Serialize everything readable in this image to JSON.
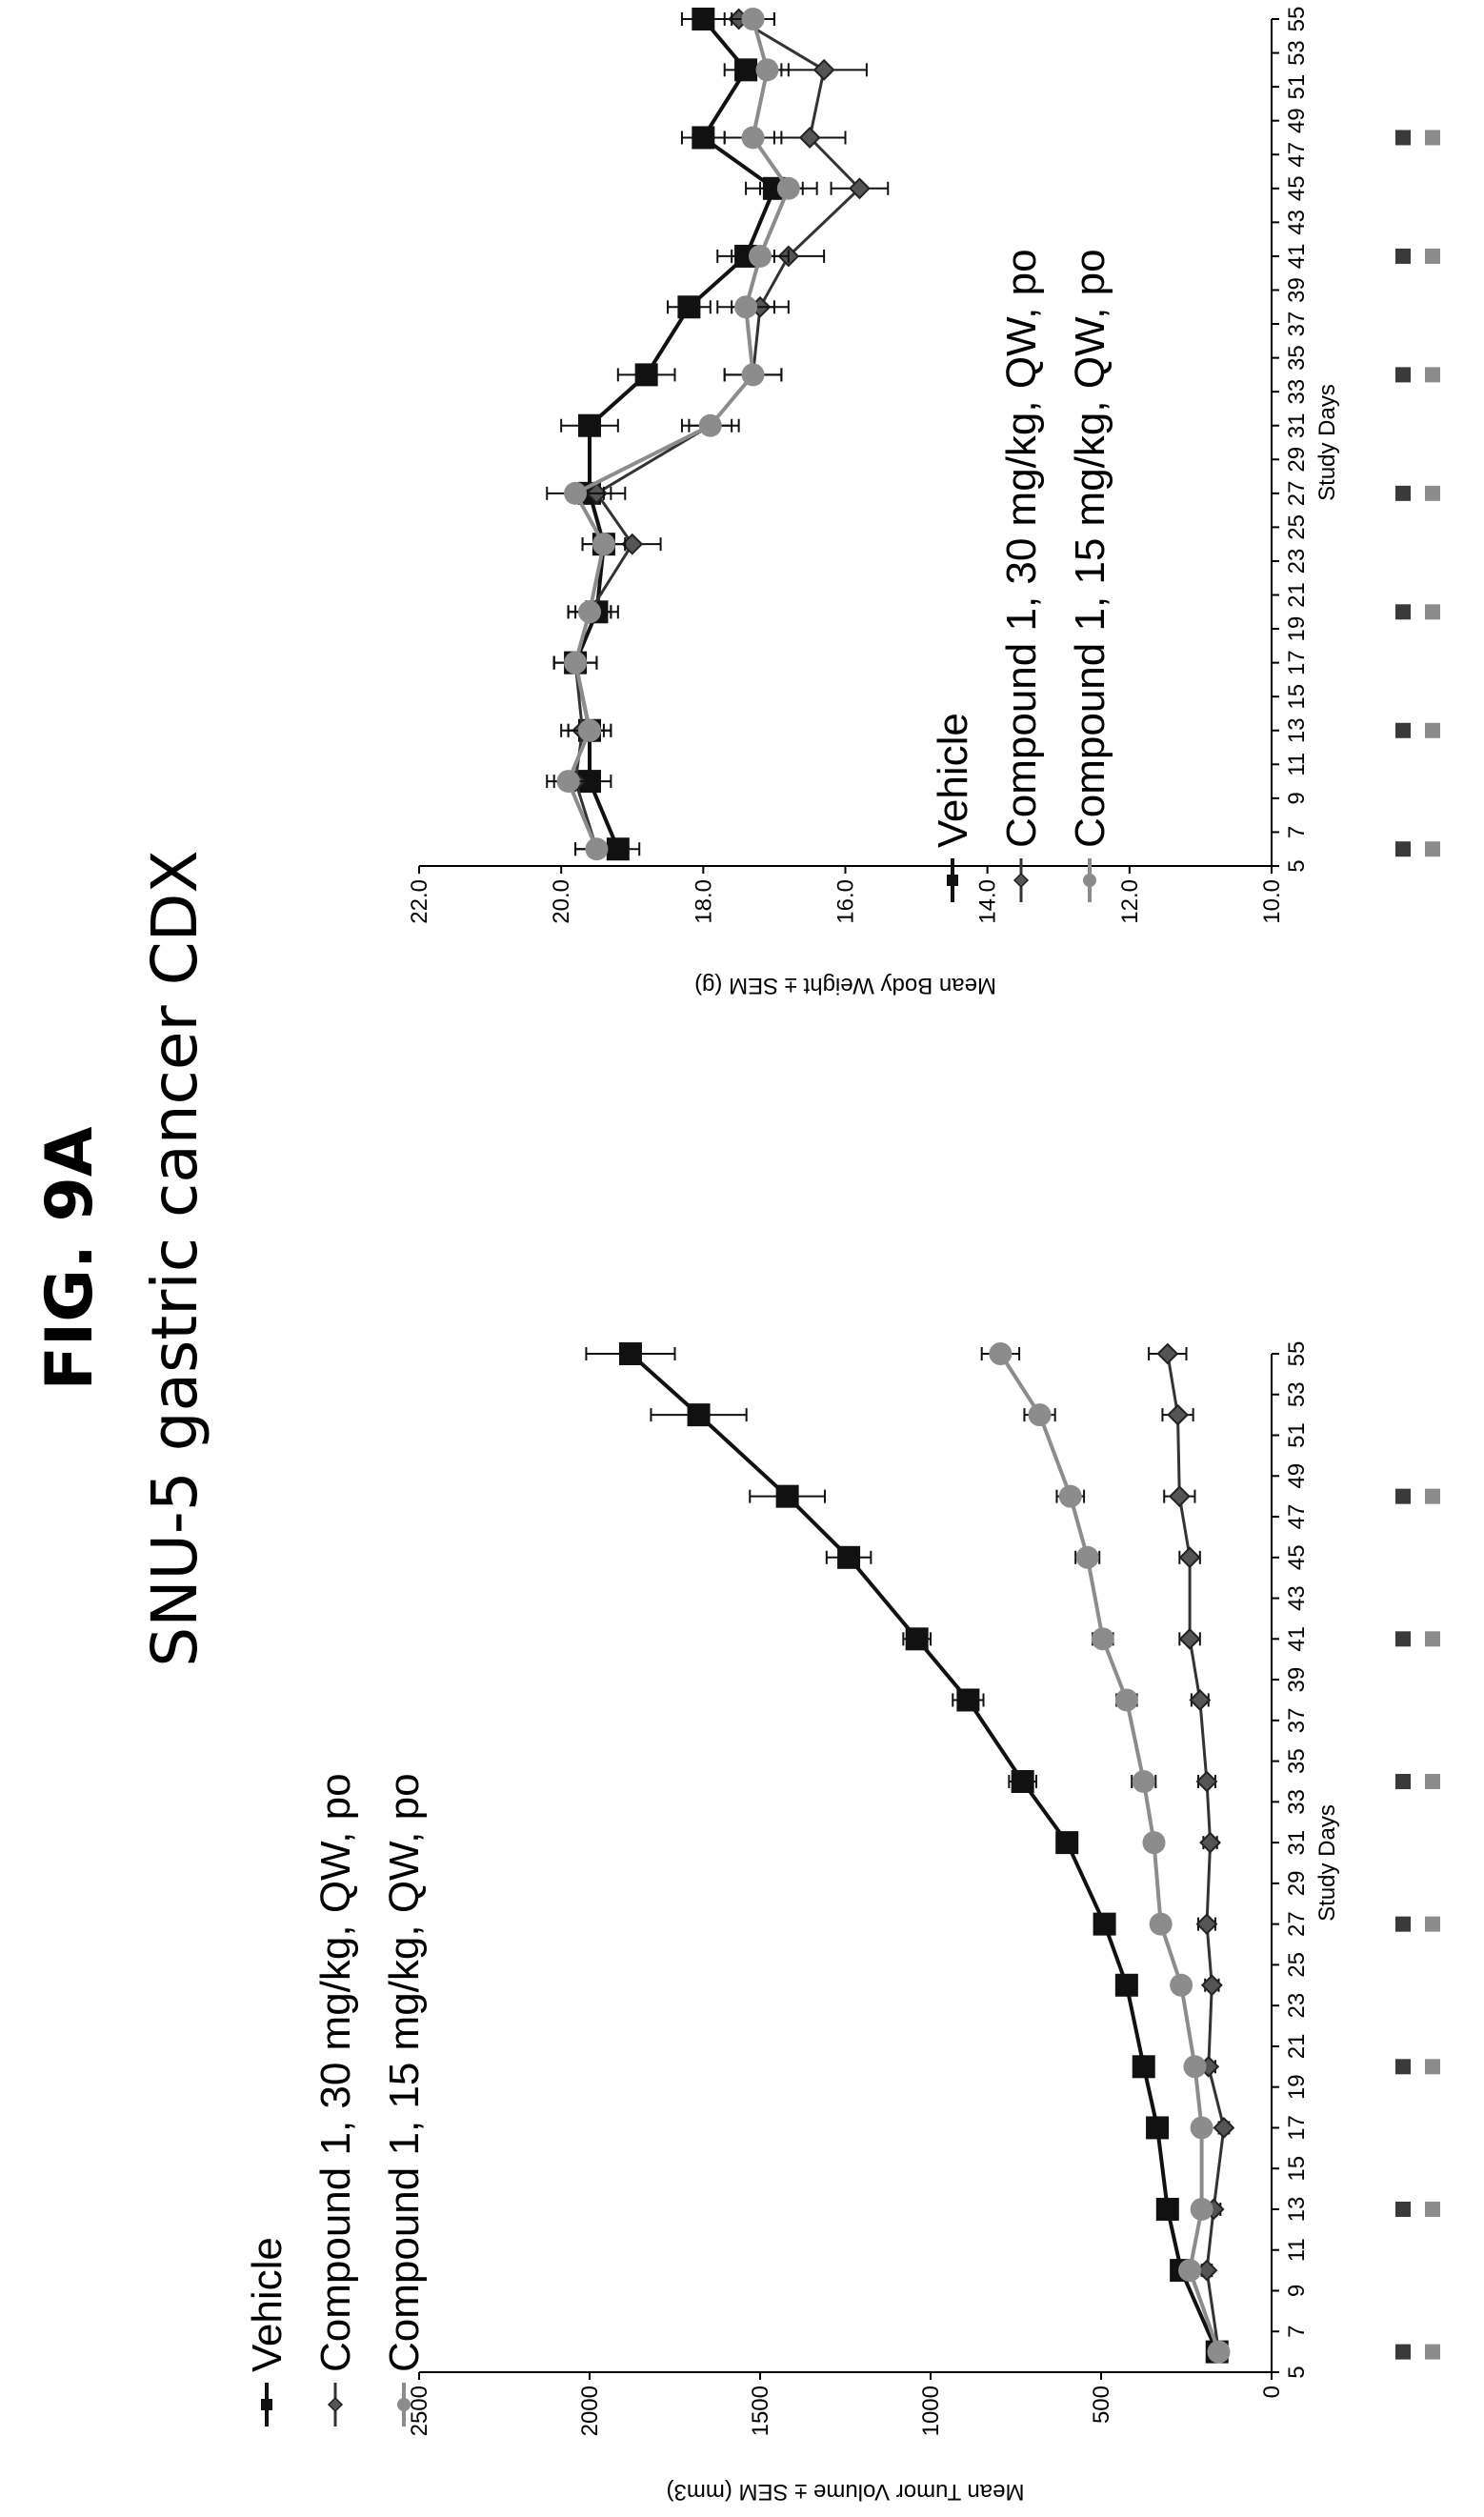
{
  "figure_label": "FIG. 9A",
  "subtitle": "SNU-5 gastric cancer CDX",
  "colors": {
    "vehicle": "#111111",
    "c30": "#333333",
    "c15": "#8c8c8c",
    "dose_dark": "#3a3a3a",
    "dose_light": "#8c8c8c"
  },
  "dosing_days": [
    6,
    13,
    20,
    27,
    34,
    41,
    48
  ],
  "chart_data": [
    {
      "type": "line",
      "xlabel": "Study Days",
      "ylabel": "Mean Tumor Volume ± SEM (mm3)",
      "xlim": [
        5,
        55
      ],
      "ylim": [
        0,
        2500
      ],
      "x_ticks": [
        5,
        7,
        9,
        11,
        13,
        15,
        17,
        19,
        21,
        23,
        25,
        27,
        29,
        31,
        33,
        35,
        37,
        39,
        41,
        43,
        45,
        47,
        49,
        51,
        53,
        55
      ],
      "y_ticks": [
        0,
        500,
        1000,
        1500,
        2000,
        2500
      ],
      "y_tick_labels": [
        "0",
        "500",
        "1000",
        "1500",
        "2000",
        "2500"
      ],
      "legend": [
        "Vehicle",
        "Compound 1, 30 mg/kg, QW, po",
        "Compound 1, 15 mg/kg, QW, po"
      ],
      "series": [
        {
          "name": "Vehicle",
          "marker": "square",
          "color_key": "vehicle",
          "x": [
            6,
            10,
            13,
            17,
            20,
            24,
            27,
            31,
            34,
            38,
            41,
            45,
            48,
            52,
            55
          ],
          "y": [
            160,
            265,
            305,
            335,
            375,
            425,
            490,
            600,
            730,
            890,
            1040,
            1240,
            1420,
            1680,
            1880
          ],
          "err": [
            10,
            15,
            20,
            20,
            25,
            25,
            25,
            30,
            40,
            45,
            40,
            65,
            110,
            140,
            130
          ]
        },
        {
          "name": "Compound 1, 30 mg/kg, QW, po",
          "marker": "diamond",
          "color_key": "c30",
          "x": [
            6,
            10,
            13,
            17,
            20,
            24,
            27,
            31,
            34,
            38,
            41,
            45,
            48,
            52,
            55
          ],
          "y": [
            155,
            190,
            170,
            140,
            185,
            175,
            190,
            180,
            190,
            210,
            240,
            240,
            270,
            275,
            305
          ],
          "err": [
            10,
            15,
            20,
            15,
            20,
            20,
            25,
            20,
            25,
            25,
            30,
            30,
            45,
            45,
            55
          ]
        },
        {
          "name": "Compound 1, 15 mg/kg, QW, po",
          "marker": "circle",
          "color_key": "c15",
          "x": [
            6,
            10,
            13,
            17,
            20,
            24,
            27,
            31,
            34,
            38,
            41,
            45,
            48,
            52,
            55
          ],
          "y": [
            155,
            240,
            205,
            205,
            225,
            265,
            325,
            345,
            375,
            425,
            495,
            540,
            590,
            680,
            795
          ],
          "err": [
            10,
            15,
            15,
            20,
            20,
            20,
            25,
            25,
            35,
            30,
            30,
            35,
            40,
            45,
            55
          ]
        }
      ]
    },
    {
      "type": "line",
      "xlabel": "Study Days",
      "ylabel": "Mean Body Weight ± SEM (g)",
      "xlim": [
        5,
        55
      ],
      "ylim": [
        10,
        22
      ],
      "x_ticks": [
        5,
        7,
        9,
        11,
        13,
        15,
        17,
        19,
        21,
        23,
        25,
        27,
        29,
        31,
        33,
        35,
        37,
        39,
        41,
        43,
        45,
        47,
        49,
        51,
        53,
        55
      ],
      "y_ticks": [
        10,
        12,
        14,
        16,
        18,
        20,
        22
      ],
      "y_tick_labels": [
        "10.0",
        "12.0",
        "14.0",
        "16.0",
        "18.0",
        "20.0",
        "22.0"
      ],
      "legend": [
        "Vehicle",
        "Compound 1, 30 mg/kg, QW, po",
        "Compound 1, 15 mg/kg, QW, po"
      ],
      "series": [
        {
          "name": "Vehicle",
          "marker": "square",
          "color_key": "vehicle",
          "x": [
            6,
            10,
            13,
            17,
            20,
            24,
            27,
            31,
            34,
            38,
            41,
            45,
            48,
            52,
            55
          ],
          "y": [
            19.2,
            19.6,
            19.6,
            19.8,
            19.5,
            19.4,
            19.6,
            19.6,
            18.8,
            18.2,
            17.4,
            17.0,
            18.0,
            17.4,
            18.0
          ],
          "err": [
            0.3,
            0.3,
            0.3,
            0.3,
            0.3,
            0.3,
            0.3,
            0.4,
            0.4,
            0.3,
            0.4,
            0.4,
            0.3,
            0.3,
            0.3
          ]
        },
        {
          "name": "Compound 1, 30 mg/kg, QW, po",
          "marker": "diamond",
          "color_key": "c30",
          "x": [
            6,
            10,
            13,
            17,
            20,
            24,
            27,
            31,
            34,
            38,
            41,
            45,
            48,
            52,
            55
          ],
          "y": [
            19.5,
            19.8,
            19.7,
            19.8,
            19.6,
            19.0,
            19.5,
            17.9,
            17.3,
            17.2,
            16.8,
            15.8,
            16.5,
            16.3,
            17.5
          ],
          "err": [
            0.3,
            0.3,
            0.3,
            0.3,
            0.3,
            0.4,
            0.4,
            0.4,
            0.4,
            0.4,
            0.5,
            0.4,
            0.5,
            0.6,
            0.5
          ]
        },
        {
          "name": "Compound 1, 15 mg/kg, QW, po",
          "marker": "circle",
          "color_key": "c15",
          "x": [
            6,
            10,
            13,
            17,
            20,
            24,
            27,
            31,
            34,
            38,
            41,
            45,
            48,
            52,
            55
          ],
          "y": [
            19.5,
            19.9,
            19.6,
            19.8,
            19.6,
            19.4,
            19.8,
            17.9,
            17.3,
            17.4,
            17.2,
            16.8,
            17.3,
            17.1,
            17.3
          ],
          "err": [
            0.3,
            0.3,
            0.3,
            0.3,
            0.3,
            0.3,
            0.4,
            0.3,
            0.4,
            0.4,
            0.4,
            0.4,
            0.4,
            0.3,
            0.3
          ]
        }
      ]
    }
  ]
}
